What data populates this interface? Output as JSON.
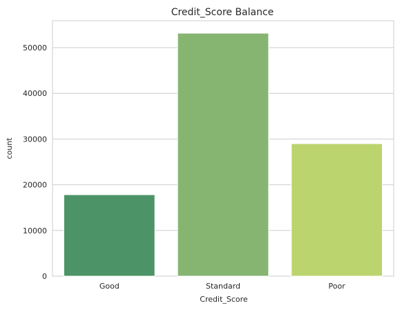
{
  "chart_data": {
    "type": "bar",
    "title": "Credit_Score Balance",
    "xlabel": "Credit_Score",
    "ylabel": "count",
    "categories": [
      "Good",
      "Standard",
      "Poor"
    ],
    "values": [
      17828,
      53174,
      28998
    ],
    "colors": [
      "#4c9467",
      "#86b572",
      "#bbd46e"
    ],
    "ylim": [
      0,
      55900
    ],
    "yticks": [
      0,
      10000,
      20000,
      30000,
      40000,
      50000
    ],
    "grid": true
  }
}
